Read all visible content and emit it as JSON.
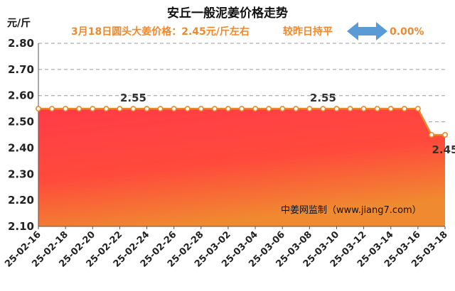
{
  "chart_data": {
    "type": "area",
    "title": "安丘一般泥姜价格走势",
    "subtitle": "3月18日圆头大姜价格：2.45元/斤左右",
    "change_text": "较昨日持平",
    "change_value": "0.00%",
    "ylabel": "元/斤",
    "ylim": [
      2.1,
      2.8
    ],
    "yticks": [
      "2.80",
      "2.70",
      "2.60",
      "2.50",
      "2.40",
      "2.30",
      "2.20",
      "2.10"
    ],
    "x": [
      "25-02-16",
      "25-02-17",
      "25-02-18",
      "25-02-19",
      "25-02-20",
      "25-02-21",
      "25-02-22",
      "25-02-23",
      "25-02-24",
      "25-02-25",
      "25-02-26",
      "25-02-27",
      "25-02-28",
      "25-03-01",
      "25-03-02",
      "25-03-03",
      "25-03-04",
      "25-03-05",
      "25-03-06",
      "25-03-07",
      "25-03-08",
      "25-03-09",
      "25-03-10",
      "25-03-11",
      "25-03-12",
      "25-03-13",
      "25-03-14",
      "25-03-15",
      "25-03-16",
      "25-03-17",
      "25-03-18"
    ],
    "x_tick_labels": [
      "25-02-16",
      "25-02-18",
      "25-02-20",
      "25-02-22",
      "25-02-24",
      "25-02-26",
      "25-02-28",
      "25-03-02",
      "25-03-04",
      "25-03-06",
      "25-03-08",
      "25-03-10",
      "25-03-12",
      "25-03-14",
      "25-03-16",
      "25-03-18"
    ],
    "series": [
      {
        "values": [
          2.55,
          2.55,
          2.55,
          2.55,
          2.55,
          2.55,
          2.55,
          2.55,
          2.55,
          2.55,
          2.55,
          2.55,
          2.55,
          2.55,
          2.55,
          2.55,
          2.55,
          2.55,
          2.55,
          2.55,
          2.55,
          2.55,
          2.55,
          2.55,
          2.55,
          2.55,
          2.55,
          2.55,
          2.55,
          2.45,
          2.45
        ]
      }
    ],
    "data_labels": [
      {
        "index": 7,
        "text": "2.55"
      },
      {
        "index": 21,
        "text": "2.55"
      },
      {
        "index": 30,
        "text": "2.45"
      }
    ],
    "watermark": "中姜网监制（www.jiang7.com）",
    "grid": true,
    "colors": {
      "line": "#e8892a",
      "fill_top": "#ff3b47",
      "fill_bottom": "#f08a30",
      "marker_fill": "#ffffff",
      "arrow": "#5b9bd5",
      "subtitle": "#f0882d"
    }
  }
}
